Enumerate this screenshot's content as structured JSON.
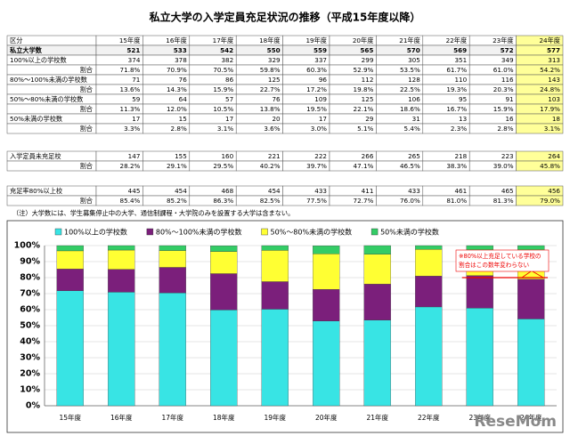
{
  "title": "私立大学の入学定員充足状況の推移（平成15年度以降）",
  "table": {
    "header": [
      "区分",
      "15年度",
      "16年度",
      "17年度",
      "18年度",
      "19年度",
      "20年度",
      "21年度",
      "22年度",
      "23年度",
      "24年度"
    ],
    "rows": [
      [
        "私立大学数",
        "521",
        "533",
        "542",
        "550",
        "559",
        "565",
        "570",
        "569",
        "572",
        "577"
      ],
      [
        "100%以上の学校数",
        "374",
        "378",
        "382",
        "329",
        "337",
        "299",
        "305",
        "351",
        "349",
        "313"
      ],
      [
        "割合",
        "71.8%",
        "70.9%",
        "70.5%",
        "59.8%",
        "60.3%",
        "52.9%",
        "53.5%",
        "61.7%",
        "61.0%",
        "54.2%"
      ],
      [
        "80%～100%未満の学校数",
        "71",
        "76",
        "86",
        "125",
        "96",
        "112",
        "128",
        "110",
        "116",
        "143"
      ],
      [
        "割合",
        "13.6%",
        "14.3%",
        "15.9%",
        "22.7%",
        "17.2%",
        "19.8%",
        "22.5%",
        "19.3%",
        "20.3%",
        "24.8%"
      ],
      [
        "50%～80%未満の学校数",
        "59",
        "64",
        "57",
        "76",
        "109",
        "125",
        "106",
        "95",
        "91",
        "103"
      ],
      [
        "割合",
        "11.3%",
        "12.0%",
        "10.5%",
        "13.8%",
        "19.5%",
        "22.1%",
        "18.6%",
        "16.7%",
        "15.9%",
        "17.9%"
      ],
      [
        "50%未満の学校数",
        "17",
        "15",
        "17",
        "20",
        "17",
        "29",
        "31",
        "13",
        "16",
        "18"
      ],
      [
        "割合",
        "3.3%",
        "2.8%",
        "3.1%",
        "3.6%",
        "3.0%",
        "5.1%",
        "5.4%",
        "2.3%",
        "2.8%",
        "3.1%"
      ],
      [
        "入学定員未充足校",
        "147",
        "155",
        "160",
        "221",
        "222",
        "266",
        "265",
        "218",
        "223",
        "264"
      ],
      [
        "割合",
        "28.2%",
        "29.1%",
        "29.5%",
        "40.2%",
        "39.7%",
        "47.1%",
        "46.5%",
        "38.3%",
        "39.0%",
        "45.8%"
      ],
      [
        "充足率80%以上校",
        "445",
        "454",
        "468",
        "454",
        "433",
        "411",
        "433",
        "461",
        "465",
        "456"
      ],
      [
        "割合",
        "85.4%",
        "85.2%",
        "86.3%",
        "82.5%",
        "77.5%",
        "72.7%",
        "76.0%",
        "81.0%",
        "81.3%",
        "79.0%"
      ]
    ]
  },
  "note": "（注）大学数には、学生募集停止中の大学、通信制課程・大学院のみを設置する大学は含まない。",
  "watermark": "ReseMom",
  "chart_data": {
    "type": "bar",
    "stacked": true,
    "categories": [
      "15年度",
      "16年度",
      "17年度",
      "18年度",
      "19年度",
      "20年度",
      "21年度",
      "22年度",
      "23年度",
      "24年度"
    ],
    "series": [
      {
        "name": "100%以上の学校数",
        "color": "#38e4e4",
        "values": [
          71.8,
          70.9,
          70.5,
          59.8,
          60.3,
          52.9,
          53.5,
          61.7,
          61.0,
          54.2
        ]
      },
      {
        "name": "80%～100%未満の学校数",
        "color": "#7b1f7b",
        "values": [
          13.6,
          14.3,
          15.9,
          22.7,
          17.2,
          19.8,
          22.5,
          19.3,
          20.3,
          24.8
        ]
      },
      {
        "name": "50%～80%未満の学校数",
        "color": "#ffff33",
        "values": [
          11.3,
          12.0,
          10.5,
          13.8,
          19.5,
          22.1,
          18.6,
          16.7,
          15.9,
          17.9
        ]
      },
      {
        "name": "50%未満の学校数",
        "color": "#33cc66",
        "values": [
          3.3,
          2.8,
          3.1,
          3.6,
          3.0,
          5.1,
          5.4,
          2.3,
          2.8,
          3.1
        ]
      }
    ],
    "ylim": [
      0,
      100
    ],
    "yticks": [
      {
        "value": 0,
        "label": "0%"
      },
      {
        "value": 10,
        "label": "10%"
      },
      {
        "value": 20,
        "label": "20%"
      },
      {
        "value": 30,
        "label": "30%"
      },
      {
        "value": 40,
        "label": "40%"
      },
      {
        "value": 50,
        "label": "50%"
      },
      {
        "value": 60,
        "label": "60%"
      },
      {
        "value": 70,
        "label": "70%"
      },
      {
        "value": 80,
        "label": "80%"
      },
      {
        "value": 90,
        "label": "90%"
      },
      {
        "value": 100,
        "label": "100%"
      }
    ],
    "grid": true,
    "legend": "top",
    "reference_line": 80,
    "annotation": [
      "※80%以上充足している学校の",
      "割合はこの数年変わらない"
    ]
  }
}
